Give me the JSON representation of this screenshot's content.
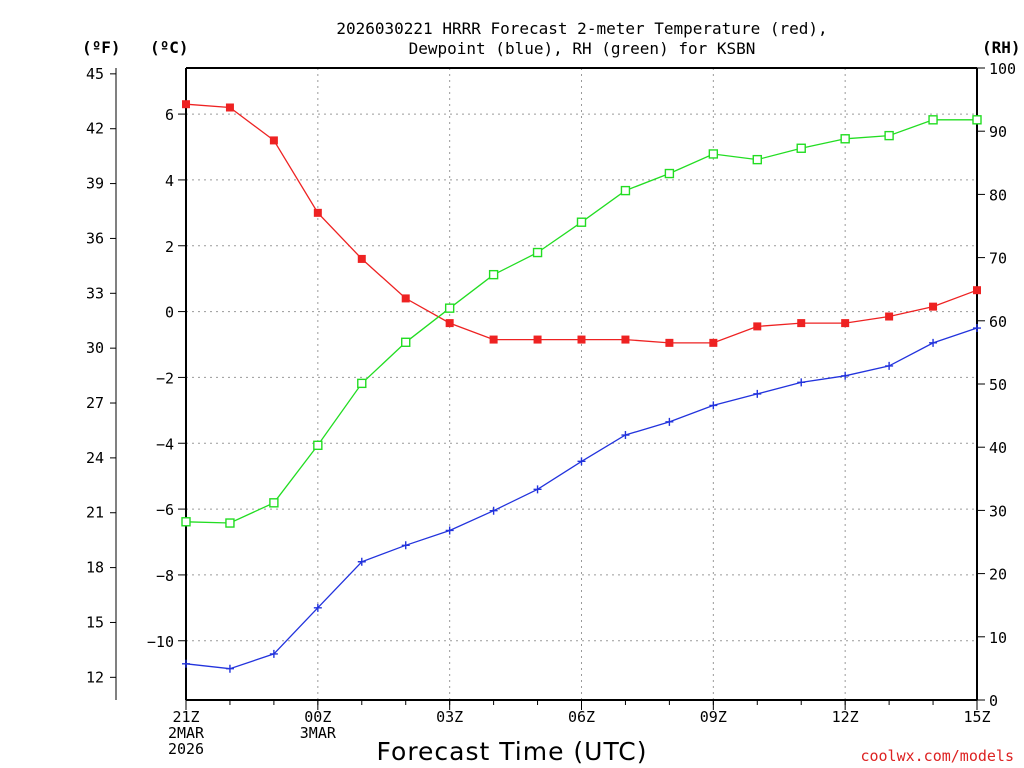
{
  "chart_data": {
    "type": "line",
    "title_line1": "2026030221 HRRR Forecast 2-meter Temperature (red),",
    "title_line2": "Dewpoint (blue), RH (green) for KSBN",
    "xlabel": "Forecast Time (UTC)",
    "credit": "coolwx.com/models",
    "left_unit_f": "(ºF)",
    "left_unit_c": "(ºC)",
    "right_unit_rh": "(RH)",
    "x_hours": [
      0,
      1,
      2,
      3,
      4,
      5,
      6,
      7,
      8,
      9,
      10,
      11,
      12,
      13,
      14,
      15,
      16,
      17,
      18
    ],
    "x_ticks": [
      {
        "hour": 0,
        "lines": [
          "21Z",
          "2MAR",
          "2026"
        ]
      },
      {
        "hour": 3,
        "lines": [
          "00Z",
          "3MAR"
        ]
      },
      {
        "hour": 6,
        "lines": [
          "03Z"
        ]
      },
      {
        "hour": 9,
        "lines": [
          "06Z"
        ]
      },
      {
        "hour": 12,
        "lines": [
          "09Z"
        ]
      },
      {
        "hour": 15,
        "lines": [
          "12Z"
        ]
      },
      {
        "hour": 18,
        "lines": [
          "15Z"
        ]
      }
    ],
    "celsius_axis": {
      "range": [
        -11.8,
        7.4
      ],
      "ticks": [
        -10,
        -8,
        -6,
        -4,
        -2,
        0,
        2,
        4,
        6
      ]
    },
    "fahrenheit_ticks": [
      12,
      15,
      18,
      21,
      24,
      27,
      30,
      33,
      36,
      39,
      42,
      45
    ],
    "rh_axis": {
      "range": [
        0,
        100
      ],
      "ticks": [
        0,
        10,
        20,
        30,
        40,
        50,
        60,
        70,
        80,
        90,
        100
      ]
    },
    "series": [
      {
        "name": "2-meter Temperature",
        "unit": "C",
        "color": "#ee2222",
        "marker": "filled-square",
        "values": [
          6.3,
          6.2,
          5.2,
          3.0,
          1.6,
          0.4,
          -0.35,
          -0.85,
          -0.85,
          -0.85,
          -0.85,
          -0.95,
          -0.95,
          -0.45,
          -0.35,
          -0.35,
          -0.15,
          0.15,
          0.65
        ]
      },
      {
        "name": "Dewpoint",
        "unit": "C",
        "color": "#2233dd",
        "marker": "plus",
        "values": [
          -10.7,
          -10.85,
          -10.4,
          -9.0,
          -7.6,
          -7.1,
          -6.65,
          -6.05,
          -5.4,
          -4.55,
          -3.75,
          -3.35,
          -2.85,
          -2.5,
          -2.15,
          -1.95,
          -1.65,
          -0.95,
          -0.5
        ]
      },
      {
        "name": "RH",
        "unit": "%",
        "color": "#22dd22",
        "marker": "open-square",
        "values": [
          28.2,
          28.0,
          31.2,
          40.3,
          50.1,
          56.6,
          62.0,
          67.3,
          70.8,
          75.6,
          80.6,
          83.3,
          86.4,
          85.5,
          87.3,
          88.8,
          89.3,
          91.8,
          91.8
        ]
      }
    ]
  }
}
